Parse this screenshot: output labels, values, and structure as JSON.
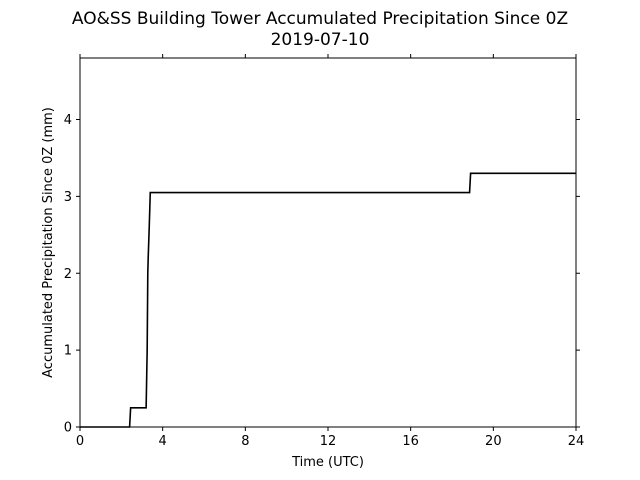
{
  "chart_data": {
    "type": "line",
    "title": "AO&SS Building Tower Accumulated Precipitation Since 0Z",
    "subtitle": "2019-07-10",
    "xlabel": "Time (UTC)",
    "ylabel": "Accumulated Precipitation Since 0Z (mm)",
    "xlim": [
      0,
      24
    ],
    "ylim": [
      0,
      4.8
    ],
    "xticks": [
      0,
      4,
      8,
      12,
      16,
      20,
      24
    ],
    "yticks": [
      0,
      1,
      2,
      3,
      4
    ],
    "xtick_labels": [
      "0",
      "4",
      "8",
      "12",
      "16",
      "20",
      "24"
    ],
    "ytick_labels": [
      "0",
      "1",
      "2",
      "3",
      "4"
    ],
    "grid": false,
    "legend": "none",
    "line_color": "#000000",
    "series": [
      {
        "x": [
          0,
          2.4,
          2.45,
          3.2,
          3.25,
          3.28,
          3.3,
          3.35,
          3.4,
          18.85,
          18.9,
          24
        ],
        "y": [
          0,
          0,
          0.25,
          0.25,
          1.0,
          2.0,
          2.2,
          2.6,
          3.05,
          3.05,
          3.3,
          3.3
        ]
      }
    ]
  }
}
